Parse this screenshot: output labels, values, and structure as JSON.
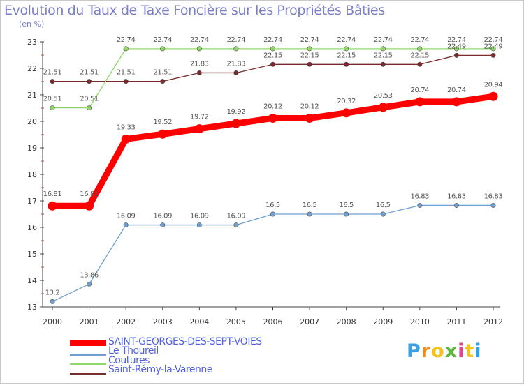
{
  "title": "Evolution du Taux de Taxe Foncière sur les Propriétés Bâties",
  "subtitle": "(en %)",
  "logo": {
    "letters": [
      "P",
      "r",
      "o",
      "x",
      "i",
      "t",
      "i"
    ],
    "colors": [
      "#3b9fe0",
      "#f08a1e",
      "#f5c31c",
      "#5bb83a",
      "#d84a8c",
      "#f5c31c",
      "#3b9fe0"
    ]
  },
  "chart_data": {
    "type": "line",
    "title": "Evolution du Taux de Taxe Foncière sur les Propriétés Bâties",
    "ylabel": "(en %)",
    "xlabel": "",
    "x": [
      "2000",
      "2001",
      "2002",
      "2003",
      "2004",
      "2005",
      "2006",
      "2007",
      "2008",
      "2009",
      "2010",
      "2011",
      "2012"
    ],
    "ylim": [
      13,
      23
    ],
    "yticks": [
      "13",
      "14",
      "15",
      "16",
      "17",
      "18",
      "19",
      "20",
      "21",
      "22",
      "23"
    ],
    "grid": false,
    "legend_position": "bottom-left",
    "series": [
      {
        "name": "SAINT-GEORGES-DES-SEPT-VOIES",
        "color": "#ff0000",
        "values": [
          16.81,
          16.81,
          19.33,
          19.52,
          19.72,
          19.92,
          20.12,
          20.12,
          20.32,
          20.53,
          20.74,
          20.74,
          20.94
        ],
        "labels": [
          "16.81",
          "16.81",
          "19.33",
          "19.52",
          "19.72",
          "19.92",
          "20.12",
          "20.12",
          "20.32",
          "20.53",
          "20.74",
          "20.74",
          "20.94"
        ]
      },
      {
        "name": "Le Thoureil",
        "color": "#6f9ecf",
        "values": [
          13.2,
          13.86,
          16.09,
          16.09,
          16.09,
          16.09,
          16.5,
          16.5,
          16.5,
          16.5,
          16.83,
          16.83,
          16.83
        ],
        "labels": [
          "13.2",
          "13.86",
          "16.09",
          "16.09",
          "16.09",
          "16.09",
          "16.5",
          "16.5",
          "16.5",
          "16.5",
          "16.83",
          "16.83",
          "16.83"
        ]
      },
      {
        "name": "Coutures",
        "color": "#8ed86a",
        "values": [
          20.51,
          20.51,
          22.74,
          22.74,
          22.74,
          22.74,
          22.74,
          22.74,
          22.74,
          22.74,
          22.74,
          22.74,
          22.74
        ],
        "labels": [
          "20.51",
          "20.51",
          "22.74",
          "22.74",
          "22.74",
          "22.74",
          "22.74",
          "22.74",
          "22.74",
          "22.74",
          "22.74",
          "22.74",
          "22.74"
        ]
      },
      {
        "name": "Saint-Rémy-la-Varenne",
        "color": "#7a2a2a",
        "values": [
          21.51,
          21.51,
          21.51,
          21.51,
          21.83,
          21.83,
          22.15,
          22.15,
          22.15,
          22.15,
          22.15,
          22.49,
          22.49
        ],
        "labels": [
          "21.51",
          "21.51",
          "21.51",
          "21.51",
          "21.83",
          "21.83",
          "22.15",
          "22.15",
          "22.15",
          "22.15",
          "22.15",
          "22.49",
          "22.49"
        ]
      }
    ]
  }
}
